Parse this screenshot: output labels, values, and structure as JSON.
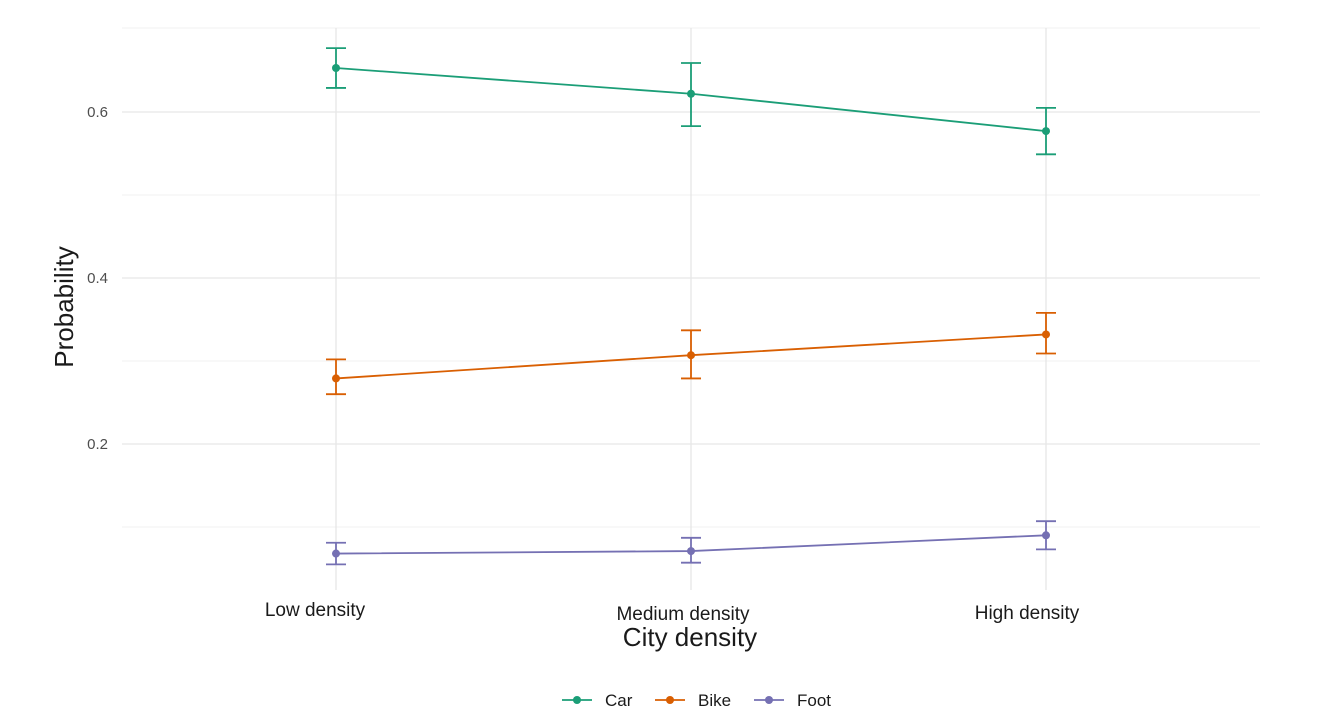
{
  "chart_data": {
    "type": "line",
    "title": "",
    "xlabel": "City density",
    "ylabel": "Probability",
    "categories": [
      "Low density",
      "Medium density",
      "High density"
    ],
    "ylim": [
      0.03,
      0.7
    ],
    "y_ticks": [
      0.2,
      0.4,
      0.6
    ],
    "y_tick_labels": [
      "0.2",
      "0.4",
      "0.6"
    ],
    "grid": true,
    "legend_position": "bottom",
    "series": [
      {
        "name": "Car",
        "color": "#1b9e77",
        "values": [
          0.653,
          0.622,
          0.577
        ],
        "lower": [
          0.629,
          0.583,
          0.549
        ],
        "upper": [
          0.677,
          0.659,
          0.605
        ]
      },
      {
        "name": "Bike",
        "color": "#d95f02",
        "values": [
          0.279,
          0.307,
          0.332
        ],
        "lower": [
          0.26,
          0.279,
          0.309
        ],
        "upper": [
          0.302,
          0.337,
          0.358
        ]
      },
      {
        "name": "Foot",
        "color": "#7570b3",
        "values": [
          0.068,
          0.071,
          0.09
        ],
        "lower": [
          0.055,
          0.057,
          0.073
        ],
        "upper": [
          0.081,
          0.087,
          0.107
        ]
      }
    ]
  }
}
